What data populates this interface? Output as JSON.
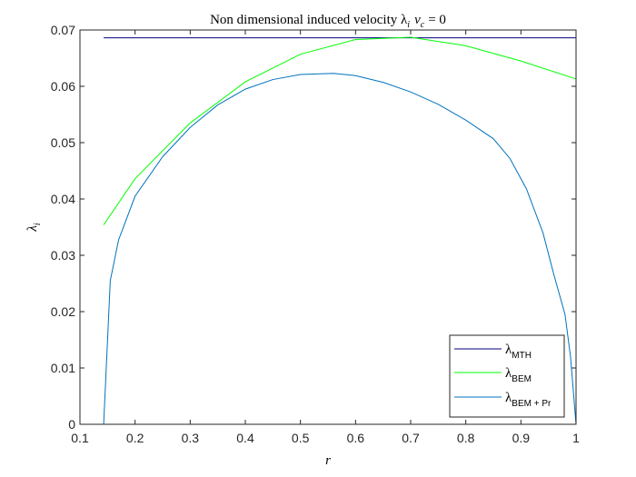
{
  "chart_data": {
    "type": "line",
    "title": "Non dimensional induced velocity λ",
    "title_sub_i": "i",
    "title_rest": "v",
    "title_sub_c": "c",
    "title_eq": "= 0",
    "xlabel": "r",
    "ylabel": "λ",
    "ylabel_sub": "i",
    "xlim": [
      0.1,
      1.0
    ],
    "ylim": [
      0,
      0.07
    ],
    "xticks": [
      0.1,
      0.2,
      0.3,
      0.4,
      0.5,
      0.6,
      0.7,
      0.8,
      0.9,
      1.0
    ],
    "xtick_labels": [
      "0.1",
      "0.2",
      "0.3",
      "0.4",
      "0.5",
      "0.6",
      "0.7",
      "0.8",
      "0.9",
      "1"
    ],
    "yticks": [
      0,
      0.01,
      0.02,
      0.03,
      0.04,
      0.05,
      0.06,
      0.07
    ],
    "ytick_labels": [
      "0",
      "0.01",
      "0.02",
      "0.03",
      "0.04",
      "0.05",
      "0.06",
      "0.07"
    ],
    "grid": false,
    "legend_position": "bottom-right",
    "series": [
      {
        "name": "λ",
        "name_sub": "MTH",
        "color": "#00007f",
        "x": [
          0.143,
          1.0
        ],
        "y": [
          0.0686,
          0.0686
        ]
      },
      {
        "name": "λ",
        "name_sub": "BEM",
        "color": "#00ff00",
        "x": [
          0.143,
          0.2,
          0.3,
          0.4,
          0.5,
          0.6,
          0.7,
          0.8,
          0.9,
          1.0
        ],
        "y": [
          0.0354,
          0.0436,
          0.0535,
          0.0608,
          0.0657,
          0.0683,
          0.0687,
          0.0672,
          0.0645,
          0.0613
        ]
      },
      {
        "name": "λ",
        "name_sub": "BEM + Pr",
        "color": "#0072bd",
        "x": [
          0.143,
          0.155,
          0.17,
          0.2,
          0.25,
          0.3,
          0.35,
          0.4,
          0.45,
          0.5,
          0.56,
          0.6,
          0.65,
          0.7,
          0.75,
          0.8,
          0.85,
          0.88,
          0.91,
          0.94,
          0.96,
          0.98,
          0.99,
          1.0
        ],
        "y": [
          0.0,
          0.0255,
          0.0327,
          0.0405,
          0.0475,
          0.0527,
          0.0567,
          0.0595,
          0.0612,
          0.0621,
          0.0623,
          0.0619,
          0.0607,
          0.059,
          0.0568,
          0.054,
          0.0507,
          0.0472,
          0.0418,
          0.034,
          0.0265,
          0.0195,
          0.012,
          0.0
        ]
      }
    ]
  }
}
